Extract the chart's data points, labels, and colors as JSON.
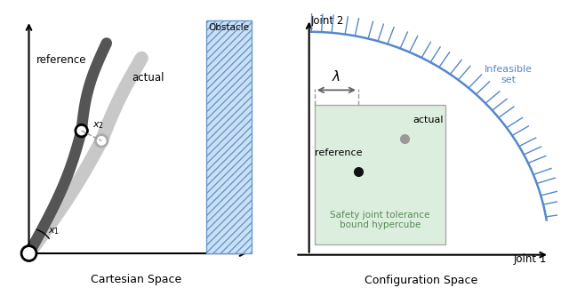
{
  "left_title": "Cartesian Space",
  "right_title": "Configuration Space",
  "obstacle_label": "Obstacle",
  "reference_label": "reference",
  "actual_label": "actual",
  "infeasible_label": "Infeasible\nset",
  "safety_label": "Safety joint tolerance\nbound hypercube",
  "lambda_label": "λ",
  "joint1_label": "Joint 1",
  "joint2_label": "Joint 2",
  "ref_dot_color": "#111111",
  "actual_dot_color": "#999999",
  "green_fill": "#dceedd",
  "obstacle_fill": "#cce0f5",
  "obstacle_hatch_color": "#6699cc",
  "dark_arm_color": "#555555",
  "light_arm_color": "#c8c8c8",
  "infeasible_curve_color": "#5588cc",
  "dashed_color": "#999999",
  "arrow_color": "#666666"
}
